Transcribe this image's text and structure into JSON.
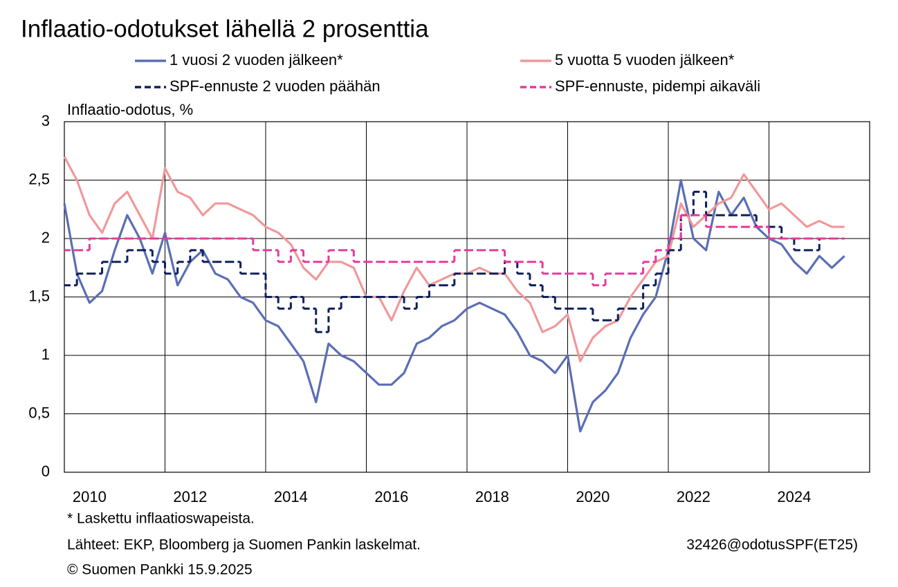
{
  "chart_data": {
    "type": "line",
    "title": "Inflaatio-odotukset lähellä 2 prosenttia",
    "y_label": "Inflaatio-odotus, %",
    "footnote": "* Laskettu inflaatioswapeista.",
    "source": "Lähteet: EKP, Bloomberg ja Suomen Pankin laskelmat.",
    "copyright": "© Suomen Pankki 15.9.2025",
    "code": "32426@odotusSPF(ET25)",
    "x": [
      2010,
      2010.25,
      2010.5,
      2010.75,
      2011,
      2011.25,
      2011.5,
      2011.75,
      2012,
      2012.25,
      2012.5,
      2012.75,
      2013,
      2013.25,
      2013.5,
      2013.75,
      2014,
      2014.25,
      2014.5,
      2014.75,
      2015,
      2015.25,
      2015.5,
      2015.75,
      2016,
      2016.25,
      2016.5,
      2016.75,
      2017,
      2017.25,
      2017.5,
      2017.75,
      2018,
      2018.25,
      2018.5,
      2018.75,
      2019,
      2019.25,
      2019.5,
      2019.75,
      2020,
      2020.25,
      2020.5,
      2020.75,
      2021,
      2021.25,
      2021.5,
      2021.75,
      2022,
      2022.25,
      2022.5,
      2022.75,
      2023,
      2023.25,
      2023.5,
      2023.75,
      2024,
      2024.25,
      2024.5,
      2024.75,
      2025,
      2025.25,
      2025.5
    ],
    "series": [
      {
        "name": "1 vuosi 2 vuoden jälkeen*",
        "color": "#5a6eb4",
        "style": "solid",
        "step": false,
        "values": [
          2.3,
          1.7,
          1.45,
          1.55,
          1.9,
          2.2,
          2.0,
          1.7,
          2.05,
          1.6,
          1.8,
          1.9,
          1.7,
          1.65,
          1.5,
          1.45,
          1.3,
          1.25,
          1.1,
          0.95,
          0.6,
          1.1,
          1.0,
          0.95,
          0.85,
          0.75,
          0.75,
          0.85,
          1.1,
          1.15,
          1.25,
          1.3,
          1.4,
          1.45,
          1.4,
          1.35,
          1.2,
          1.0,
          0.95,
          0.85,
          1.0,
          0.35,
          0.6,
          0.7,
          0.85,
          1.15,
          1.35,
          1.5,
          1.9,
          2.5,
          2.0,
          1.9,
          2.4,
          2.2,
          2.35,
          2.1,
          2.0,
          1.95,
          1.8,
          1.7,
          1.85,
          1.75,
          1.85
        ]
      },
      {
        "name": "5 vuotta 5 vuoden jälkeen*",
        "color": "#f0989a",
        "style": "solid",
        "step": false,
        "values": [
          2.7,
          2.5,
          2.2,
          2.05,
          2.3,
          2.4,
          2.2,
          2.0,
          2.6,
          2.4,
          2.35,
          2.2,
          2.3,
          2.3,
          2.25,
          2.2,
          2.1,
          2.05,
          1.95,
          1.75,
          1.65,
          1.8,
          1.8,
          1.75,
          1.5,
          1.5,
          1.3,
          1.55,
          1.75,
          1.6,
          1.65,
          1.7,
          1.7,
          1.75,
          1.7,
          1.7,
          1.55,
          1.45,
          1.2,
          1.25,
          1.35,
          0.95,
          1.15,
          1.25,
          1.3,
          1.5,
          1.65,
          1.8,
          1.85,
          2.3,
          2.1,
          2.2,
          2.3,
          2.35,
          2.55,
          2.4,
          2.25,
          2.3,
          2.2,
          2.1,
          2.15,
          2.1,
          2.1
        ]
      },
      {
        "name": "SPF-ennuste 2 vuoden päähän",
        "color": "#0d1f5c",
        "style": "dashed",
        "step": true,
        "values": [
          1.6,
          1.7,
          1.7,
          1.8,
          1.8,
          1.9,
          1.9,
          1.8,
          1.7,
          1.8,
          1.9,
          1.8,
          1.8,
          1.8,
          1.7,
          1.7,
          1.5,
          1.4,
          1.5,
          1.4,
          1.2,
          1.4,
          1.5,
          1.5,
          1.5,
          1.5,
          1.5,
          1.4,
          1.5,
          1.6,
          1.6,
          1.7,
          1.7,
          1.7,
          1.7,
          1.8,
          1.7,
          1.6,
          1.5,
          1.4,
          1.4,
          1.4,
          1.3,
          1.3,
          1.4,
          1.4,
          1.6,
          1.7,
          1.9,
          2.2,
          2.4,
          2.2,
          2.2,
          2.2,
          2.2,
          2.1,
          2.1,
          2.0,
          1.9,
          1.9,
          2.0,
          2.0,
          null
        ]
      },
      {
        "name": "SPF-ennuste, pidempi aikaväli",
        "color": "#e6399b",
        "style": "dashed",
        "step": true,
        "values": [
          1.9,
          1.9,
          2.0,
          2.0,
          2.0,
          2.0,
          2.0,
          2.0,
          2.0,
          2.0,
          2.0,
          2.0,
          2.0,
          2.0,
          2.0,
          1.9,
          1.9,
          1.8,
          1.9,
          1.8,
          1.8,
          1.9,
          1.9,
          1.8,
          1.8,
          1.8,
          1.8,
          1.8,
          1.8,
          1.8,
          1.8,
          1.9,
          1.9,
          1.9,
          1.9,
          1.8,
          1.8,
          1.8,
          1.7,
          1.7,
          1.7,
          1.7,
          1.6,
          1.7,
          1.7,
          1.7,
          1.8,
          1.9,
          2.0,
          2.2,
          2.2,
          2.1,
          2.1,
          2.1,
          2.1,
          2.1,
          2.0,
          2.0,
          2.0,
          2.0,
          2.0,
          2.0,
          2.0
        ]
      }
    ],
    "xlim": [
      2010,
      2026
    ],
    "xticks": [
      2010,
      2012,
      2014,
      2016,
      2018,
      2020,
      2022,
      2024
    ],
    "ylim": [
      0,
      3
    ],
    "yticks": [
      0,
      {
        "value": 0.5,
        "label": "0,5"
      },
      1,
      {
        "value": 1.5,
        "label": "1,5"
      },
      2,
      {
        "value": 2.5,
        "label": "2,5"
      },
      3
    ],
    "grid": true
  }
}
